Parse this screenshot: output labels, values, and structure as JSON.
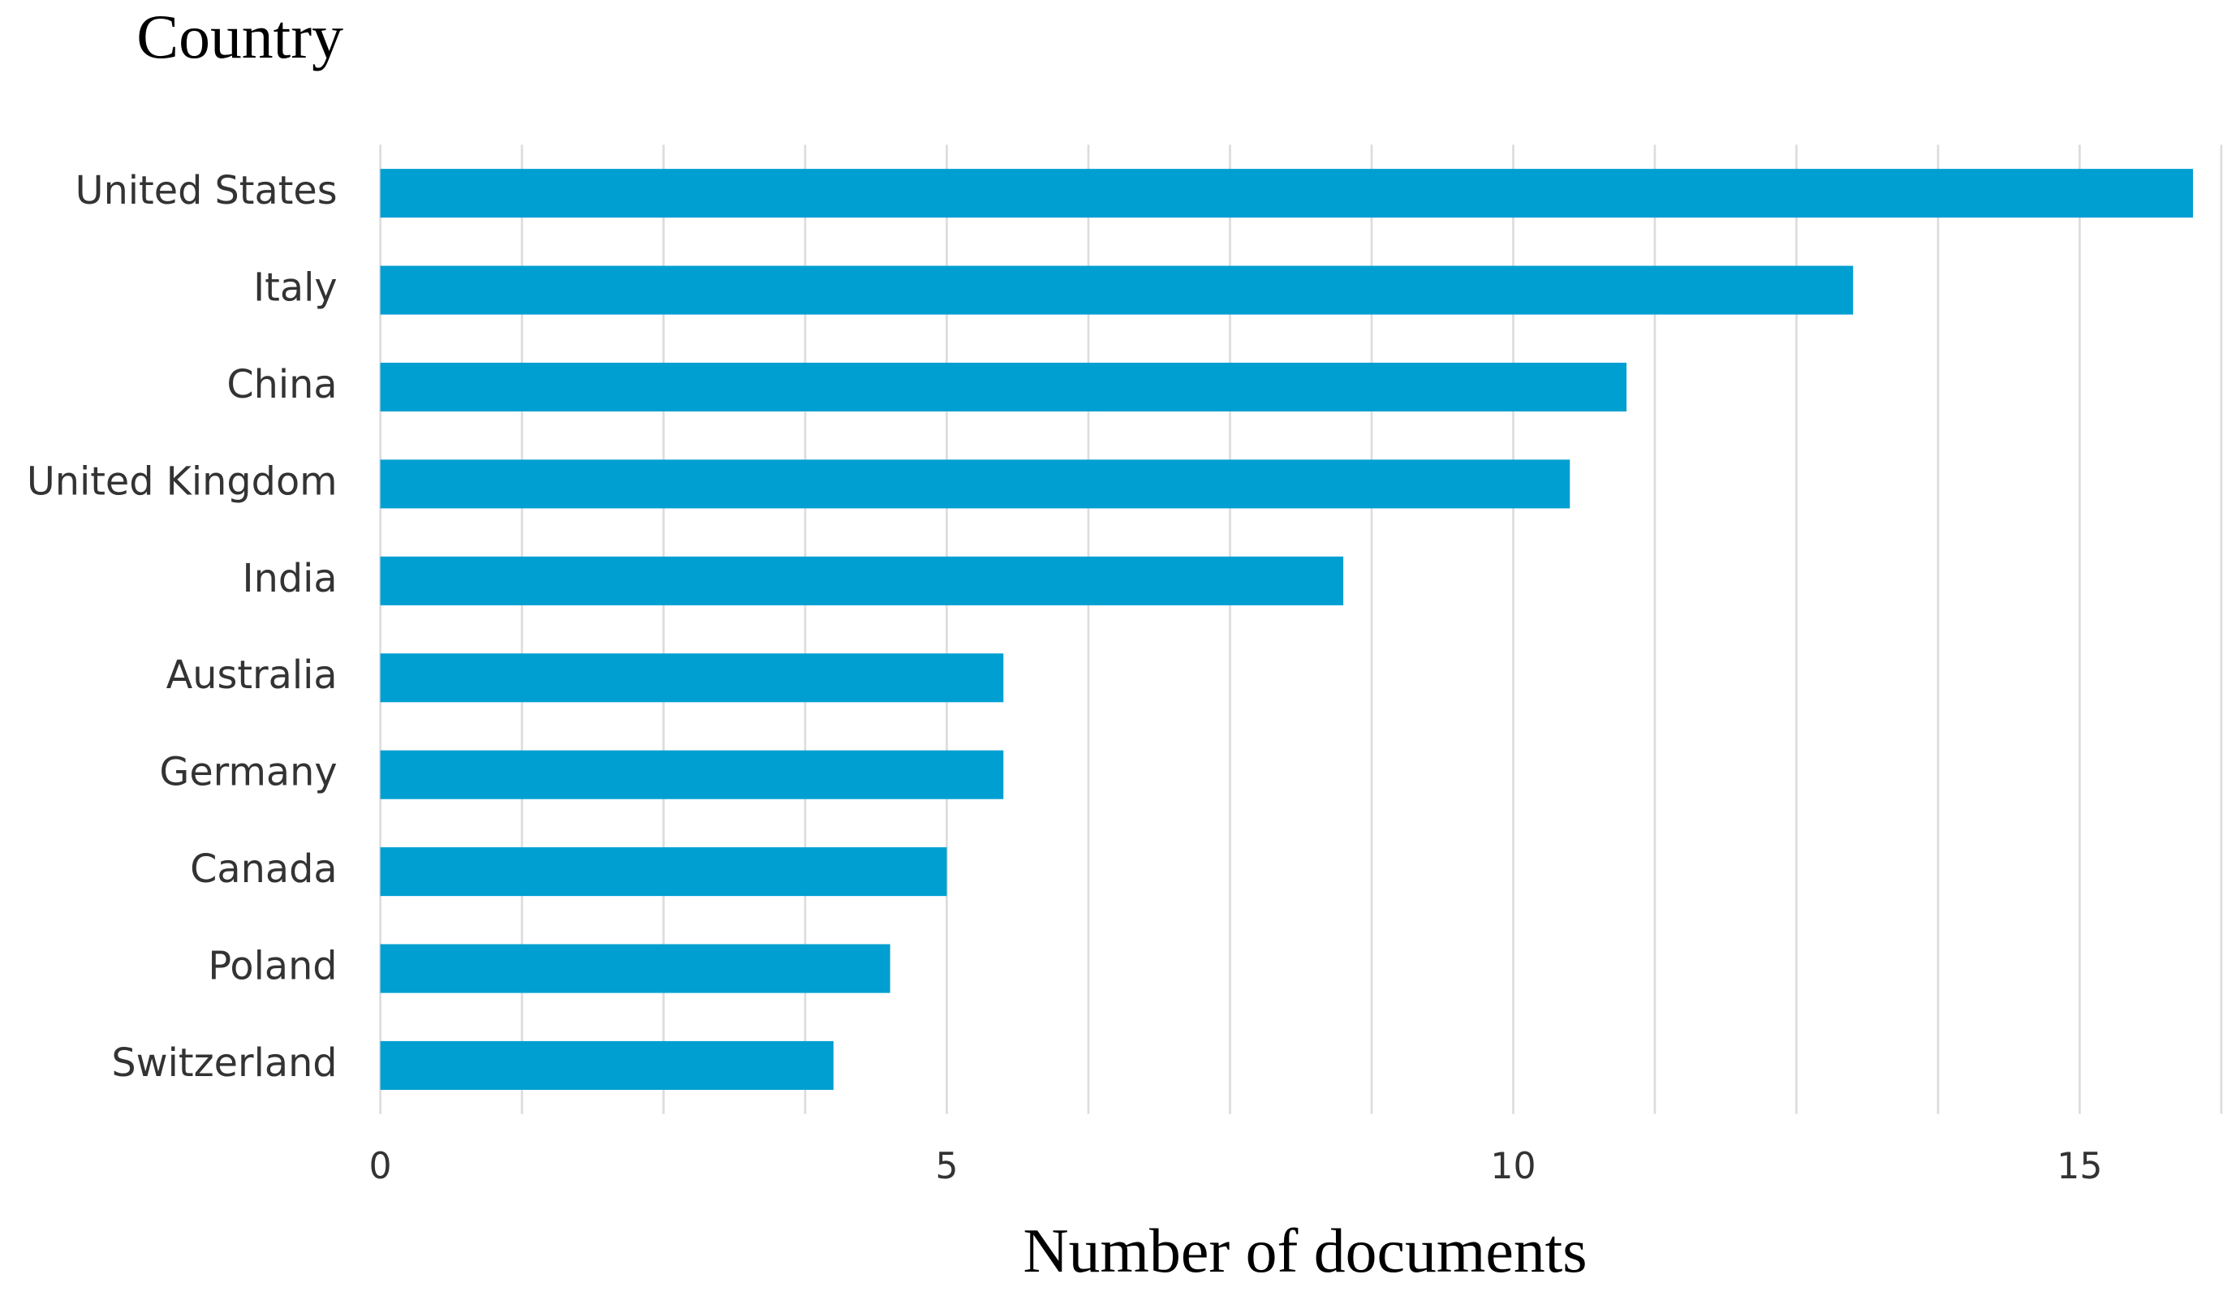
{
  "chart_data": {
    "type": "bar",
    "orientation": "horizontal",
    "title": "Country",
    "x_label": "Number of documents",
    "categories": [
      "United States",
      "Italy",
      "China",
      "United Kingdom",
      "India",
      "Australia",
      "Germany",
      "Canada",
      "Poland",
      "Switzerland"
    ],
    "values": [
      16,
      13,
      11,
      10.5,
      8.5,
      5.5,
      5.5,
      5,
      4.5,
      4
    ],
    "color": "#009fd1",
    "xlim": [
      0,
      16.25
    ],
    "xticks": [
      0,
      5,
      10,
      15
    ],
    "xgrid": [
      0,
      1.25,
      2.5,
      3.75,
      5,
      6.25,
      7.5,
      8.75,
      10,
      11.25,
      12.5,
      13.75,
      15,
      16.25
    ],
    "grid": true
  }
}
